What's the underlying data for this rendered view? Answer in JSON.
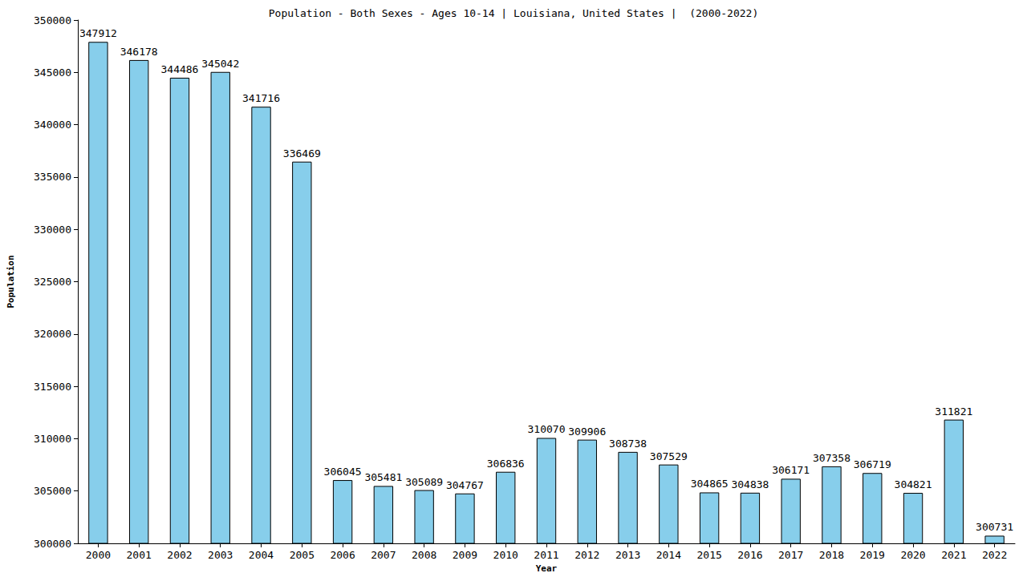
{
  "chart_data": {
    "type": "bar",
    "title": "Population - Both Sexes - Ages 10-14 | Louisiana, United States |  (2000-2022)",
    "x_label": "Year",
    "y_label": "Population",
    "categories": [
      "2000",
      "2001",
      "2002",
      "2003",
      "2004",
      "2005",
      "2006",
      "2007",
      "2008",
      "2009",
      "2010",
      "2011",
      "2012",
      "2013",
      "2014",
      "2015",
      "2016",
      "2017",
      "2018",
      "2019",
      "2020",
      "2021",
      "2022"
    ],
    "values": [
      347912,
      346178,
      344486,
      345042,
      341716,
      336469,
      306045,
      305481,
      305089,
      304767,
      306836,
      310070,
      309906,
      308738,
      307529,
      304865,
      304838,
      306171,
      307358,
      306719,
      304821,
      311821,
      300731
    ],
    "color": "#87ceeb",
    "ylim": [
      300000,
      350000
    ],
    "yticks": [
      300000,
      305000,
      310000,
      315000,
      320000,
      325000,
      330000,
      335000,
      340000,
      345000,
      350000
    ],
    "grid": false,
    "data_labels": true
  }
}
